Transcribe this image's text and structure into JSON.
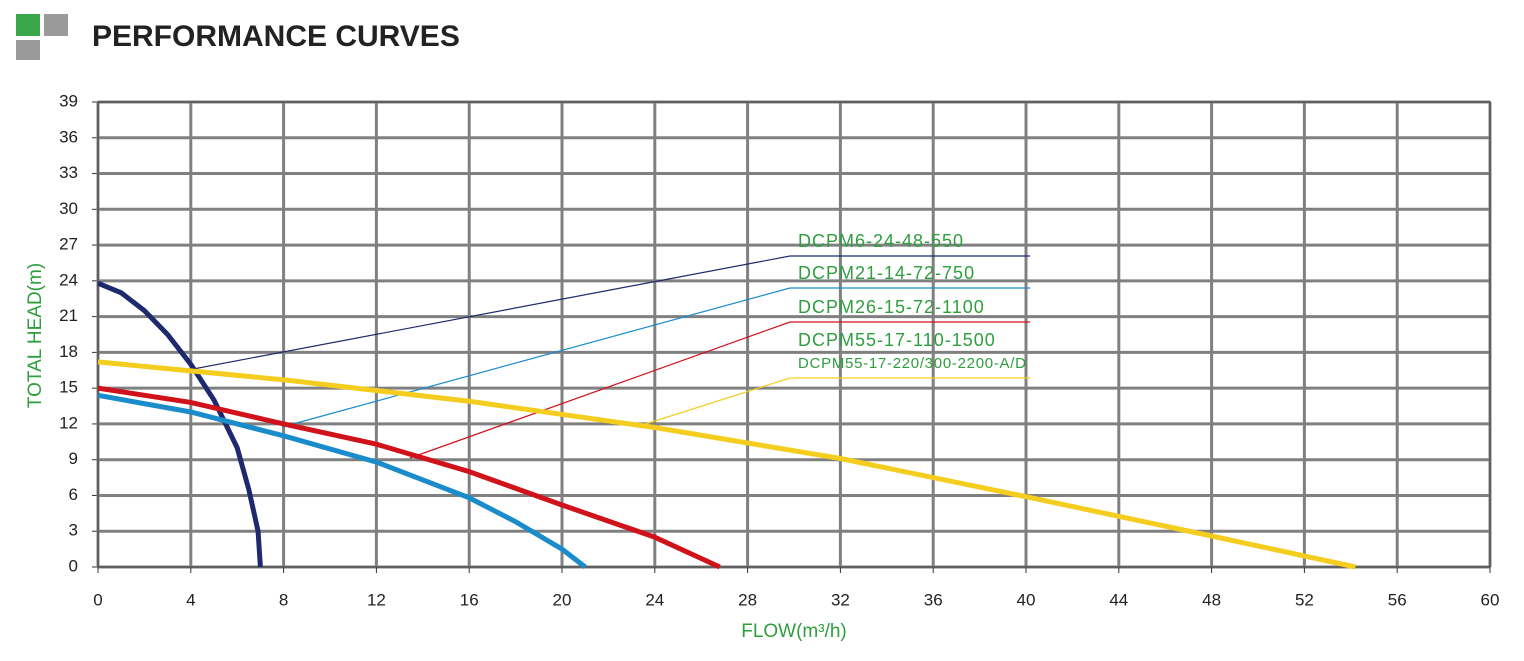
{
  "chart_data": {
    "type": "line",
    "title": "PERFORMANCE CURVES",
    "x_label": "FLOW(m³/h)",
    "y_label": "TOTAL HEAD(m)",
    "xlim": [
      0,
      60
    ],
    "xticks": [
      0,
      4,
      8,
      12,
      16,
      20,
      24,
      28,
      32,
      36,
      40,
      44,
      48,
      52,
      56,
      60
    ],
    "ylim": [
      0,
      39
    ],
    "yticks": [
      0,
      3,
      6,
      9,
      12,
      15,
      18,
      21,
      24,
      27,
      30,
      33,
      36,
      39
    ],
    "grid": true,
    "series": [
      {
        "name": "DCPM6-24-48-550",
        "color": "#1f2a6e",
        "x": [
          0,
          1,
          2,
          3,
          4,
          5,
          6,
          6.5,
          6.9,
          7
        ],
        "values": [
          23.8,
          23,
          21.5,
          19.5,
          17,
          14,
          10,
          6.5,
          3,
          0
        ]
      },
      {
        "name": "DCPM21-14-72-750",
        "color": "#1a8ccc",
        "x": [
          0,
          4,
          8,
          12,
          16,
          18,
          20,
          21
        ],
        "values": [
          14.4,
          13,
          11,
          8.8,
          5.8,
          3.8,
          1.5,
          0
        ]
      },
      {
        "name": "DCPM26-15-72-1100",
        "color": "#d0121b",
        "x": [
          0,
          4,
          8,
          12,
          16,
          20,
          24,
          26.8
        ],
        "values": [
          15,
          13.8,
          12,
          10.3,
          8,
          5.2,
          2.5,
          0
        ]
      },
      {
        "name": "DCPM55-17-220/300-2200-A/D",
        "color": "#f5cd1e",
        "x": [
          0,
          8,
          16,
          24,
          32,
          40,
          48,
          54.2
        ],
        "values": [
          17.2,
          15.7,
          13.9,
          11.7,
          9.1,
          5.9,
          2.6,
          0
        ]
      }
    ],
    "annotations": [
      "DCPM55-17-110-1500"
    ]
  }
}
